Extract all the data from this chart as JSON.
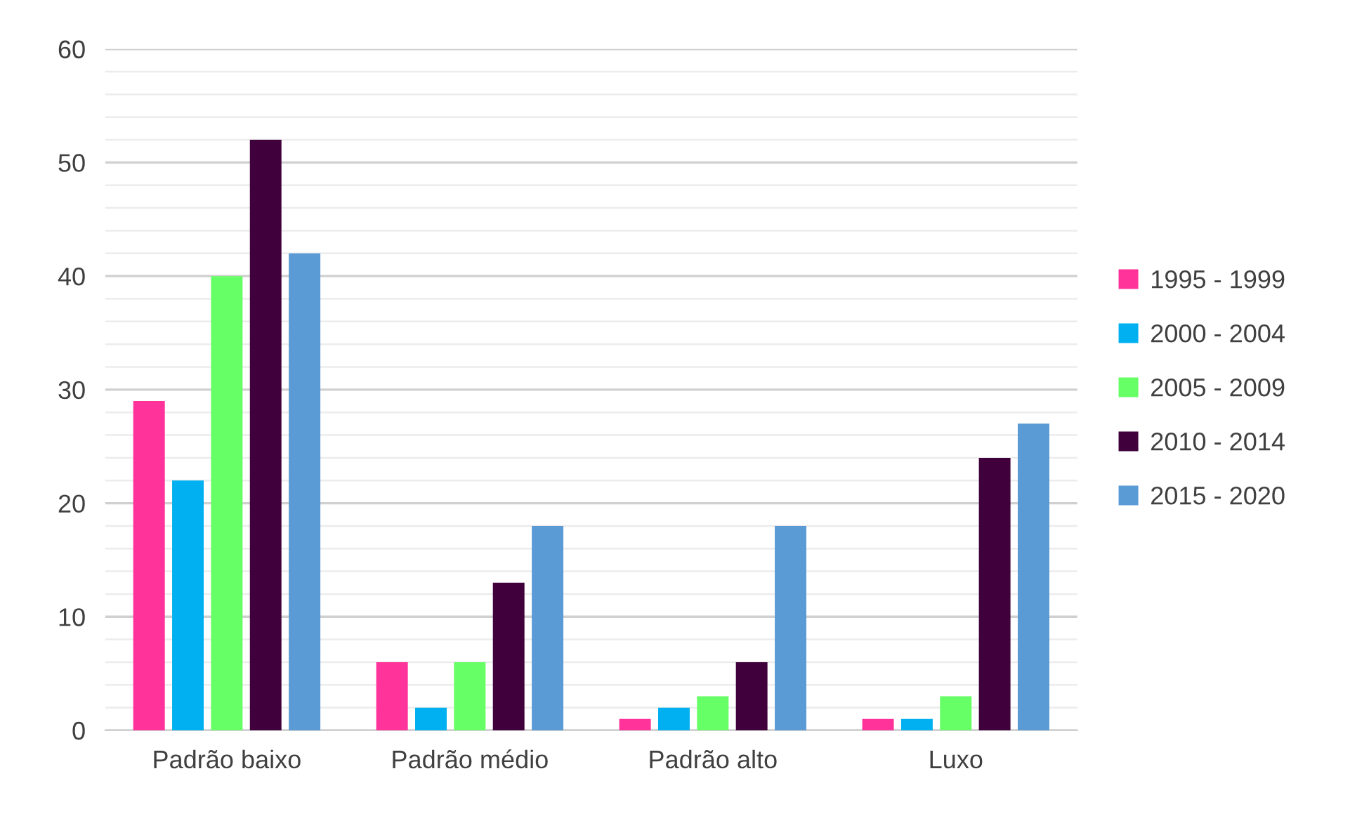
{
  "chart_data": {
    "type": "bar",
    "categories": [
      "Padrão baixo",
      "Padrão médio",
      "Padrão alto",
      "Luxo"
    ],
    "series": [
      {
        "name": "1995 - 1999",
        "color": "#ff3399",
        "values": [
          29,
          6,
          1,
          1
        ]
      },
      {
        "name": "2000 - 2004",
        "color": "#00b0f0",
        "values": [
          22,
          2,
          2,
          1
        ]
      },
      {
        "name": "2005 - 2009",
        "color": "#66ff66",
        "values": [
          40,
          6,
          3,
          3
        ]
      },
      {
        "name": "2010 - 2014",
        "color": "#3f003c",
        "values": [
          52,
          13,
          6,
          24
        ]
      },
      {
        "name": "2015 - 2020",
        "color": "#5b9bd5",
        "values": [
          42,
          18,
          18,
          27
        ]
      }
    ],
    "ylim": [
      0,
      60
    ],
    "yticks": [
      0,
      {
        "value": 2,
        "label": null
      },
      {
        "value": 4,
        "label": null
      },
      {
        "value": 6,
        "label": null
      },
      {
        "value": 8,
        "label": null
      },
      10,
      {
        "value": 12,
        "label": null
      },
      {
        "value": 14,
        "label": null
      },
      {
        "value": 16,
        "label": null
      },
      {
        "value": 18,
        "label": null
      },
      20,
      {
        "value": 22,
        "label": null
      },
      {
        "value": 24,
        "label": null
      },
      {
        "value": 26,
        "label": null
      },
      {
        "value": 28,
        "label": null
      },
      30,
      {
        "value": 32,
        "label": null
      },
      {
        "value": 34,
        "label": null
      },
      {
        "value": 36,
        "label": null
      },
      {
        "value": 38,
        "label": null
      },
      40,
      {
        "value": 42,
        "label": null
      },
      {
        "value": 44,
        "label": null
      },
      {
        "value": 46,
        "label": null
      },
      {
        "value": 48,
        "label": null
      },
      50,
      {
        "value": 52,
        "label": null
      },
      {
        "value": 54,
        "label": null
      },
      {
        "value": 56,
        "label": null
      },
      {
        "value": 58,
        "label": null
      },
      60
    ],
    "grid": "y",
    "legend": "right"
  }
}
